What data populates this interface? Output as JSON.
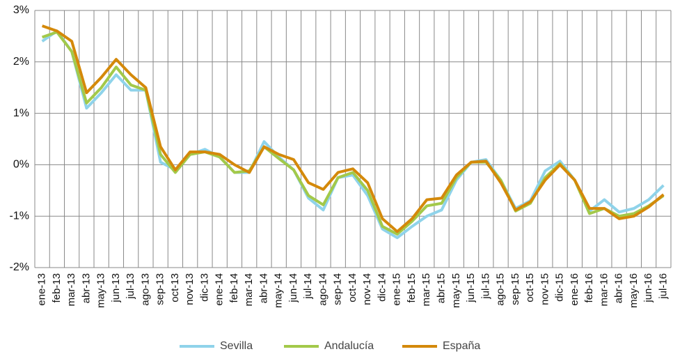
{
  "chart_data": {
    "type": "line",
    "categories": [
      "ene-13",
      "feb-13",
      "mar-13",
      "abr-13",
      "may-13",
      "jun-13",
      "jul-13",
      "ago-13",
      "sep-13",
      "oct-13",
      "nov-13",
      "dic-13",
      "ene-14",
      "feb-14",
      "mar-14",
      "abr-14",
      "may-14",
      "jun-14",
      "jul-14",
      "ago-14",
      "sep-14",
      "oct-14",
      "nov-14",
      "dic-14",
      "ene-15",
      "feb-15",
      "mar-15",
      "abr-15",
      "may-15",
      "jun-15",
      "jul-15",
      "ago-15",
      "sep-15",
      "oct-15",
      "nov-15",
      "dic-15",
      "ene-16",
      "feb-16",
      "mar-16",
      "abr-16",
      "may-16",
      "jun-16",
      "jul-16"
    ],
    "series": [
      {
        "name": "Sevilla",
        "color": "#8fd3ea",
        "values": [
          2.4,
          2.6,
          2.2,
          1.1,
          1.4,
          1.75,
          1.45,
          1.45,
          0.05,
          -0.1,
          0.2,
          0.3,
          0.15,
          -0.15,
          -0.15,
          0.45,
          0.15,
          -0.1,
          -0.65,
          -0.88,
          -0.25,
          -0.2,
          -0.6,
          -1.25,
          -1.42,
          -1.2,
          -1.0,
          -0.88,
          -0.3,
          0.05,
          0.1,
          -0.3,
          -0.85,
          -0.7,
          -0.12,
          0.07,
          -0.3,
          -0.9,
          -0.68,
          -0.92,
          -0.85,
          -0.68,
          -0.4
        ]
      },
      {
        "name": "Andalucía",
        "color": "#a3c94a",
        "values": [
          2.48,
          2.58,
          2.2,
          1.2,
          1.5,
          1.9,
          1.55,
          1.45,
          0.2,
          -0.15,
          0.2,
          0.25,
          0.15,
          -0.15,
          -0.12,
          0.35,
          0.12,
          -0.1,
          -0.6,
          -0.78,
          -0.25,
          -0.15,
          -0.5,
          -1.2,
          -1.35,
          -1.1,
          -0.8,
          -0.75,
          -0.25,
          0.05,
          0.05,
          -0.3,
          -0.9,
          -0.75,
          -0.25,
          0.02,
          -0.3,
          -0.95,
          -0.85,
          -1.0,
          -0.95,
          -0.8,
          -0.6
        ]
      },
      {
        "name": "España",
        "color": "#d4890a",
        "values": [
          2.7,
          2.6,
          2.4,
          1.4,
          1.7,
          2.05,
          1.75,
          1.5,
          0.35,
          -0.1,
          0.25,
          0.25,
          0.2,
          0.0,
          -0.15,
          0.35,
          0.2,
          0.1,
          -0.35,
          -0.48,
          -0.15,
          -0.08,
          -0.35,
          -1.05,
          -1.3,
          -1.05,
          -0.68,
          -0.65,
          -0.2,
          0.05,
          0.07,
          -0.35,
          -0.88,
          -0.72,
          -0.3,
          0.0,
          -0.3,
          -0.85,
          -0.85,
          -1.05,
          -1.0,
          -0.82,
          -0.58
        ]
      }
    ],
    "ylim": [
      -2,
      3
    ],
    "yticks": [
      {
        "value": -2,
        "label": "-2%"
      },
      {
        "value": -1,
        "label": "-1%"
      },
      {
        "value": 0,
        "label": "0%"
      },
      {
        "value": 1,
        "label": "1%"
      },
      {
        "value": 2,
        "label": "2%"
      },
      {
        "value": 3,
        "label": "3%"
      }
    ],
    "grid": true,
    "legend": "bottom"
  }
}
